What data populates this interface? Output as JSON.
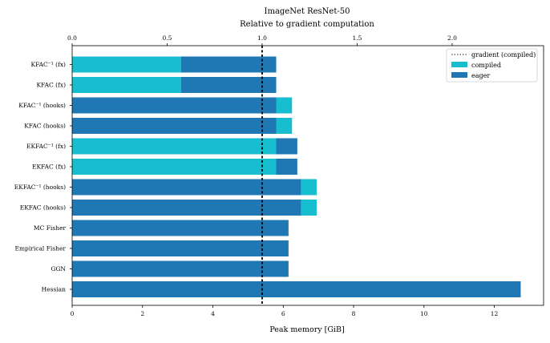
{
  "chart_data": {
    "type": "bar",
    "orientation": "horizontal",
    "stacked": true,
    "title": "ImageNet ResNet-50",
    "xlabel": "Peak memory [GiB]",
    "secondary_xlabel": "Relative to gradient computation",
    "xlim": [
      0,
      13.4
    ],
    "xticks": [
      0,
      2,
      4,
      6,
      8,
      10,
      12
    ],
    "secondary_xticks": [
      0.0,
      0.5,
      1.0,
      1.5,
      2.0
    ],
    "secondary_xlim": [
      0,
      2.4815
    ],
    "categories": [
      "KFAC⁻¹ (fx)",
      "KFAC (fx)",
      "KFAC⁻¹ (hooks)",
      "KFAC (hooks)",
      "EKFAC⁻¹ (fx)",
      "EKFAC (fx)",
      "EKFAC⁻¹ (hooks)",
      "EKFAC (hooks)",
      "MC Fisher",
      "Empirical Fisher",
      "GGN",
      "Hessian"
    ],
    "series": [
      {
        "name": "compiled",
        "color": "#17becf",
        "values": [
          3.1,
          3.1,
          6.25,
          6.25,
          5.8,
          5.8,
          6.95,
          6.95,
          null,
          null,
          null,
          null
        ]
      },
      {
        "name": "eager",
        "color": "#1f77b4",
        "values": [
          5.8,
          5.8,
          5.8,
          5.8,
          6.4,
          6.4,
          6.5,
          6.5,
          6.15,
          6.15,
          6.15,
          12.75
        ]
      }
    ],
    "reference_line": {
      "name": "gradient (compiled)",
      "value": 5.4,
      "style": "dotted",
      "color": "#000000"
    },
    "legend": {
      "position": "top-right",
      "entries": [
        "gradient (compiled)",
        "compiled",
        "eager"
      ]
    },
    "grid": false
  }
}
